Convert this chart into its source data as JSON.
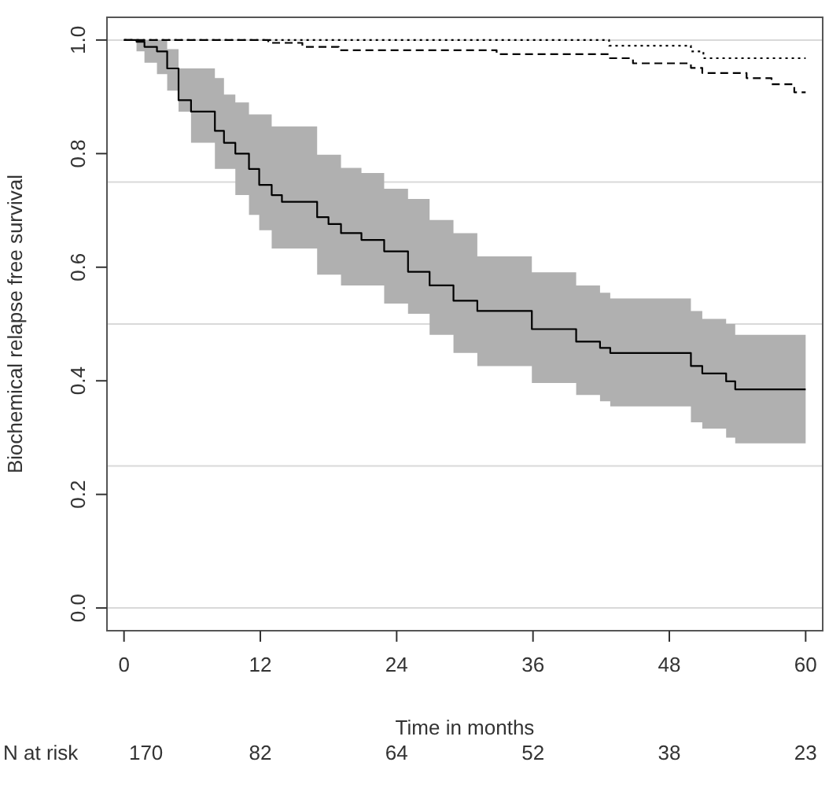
{
  "chart_data": {
    "type": "step",
    "xlabel": "Time in months",
    "ylabel": "Biochemical relapse free survival",
    "xlim": [
      -1.5,
      61.5
    ],
    "ylim": [
      -0.04,
      1.04
    ],
    "xticks": [
      0,
      12,
      24,
      36,
      48,
      60
    ],
    "yticks": [
      {
        "value": 0,
        "label": "0.0"
      },
      0.2,
      0.4,
      0.6,
      0.8,
      {
        "value": 1,
        "label": "1.0"
      }
    ],
    "ref_lines": [
      {
        "axis": "y",
        "value": 0,
        "color": "#d9d9d9"
      },
      {
        "axis": "y",
        "value": 0.25,
        "color": "#d9d9d9"
      },
      {
        "axis": "y",
        "value": 0.5,
        "color": "#d9d9d9"
      },
      {
        "axis": "y",
        "value": 0.75,
        "color": "#d9d9d9"
      },
      {
        "axis": "y",
        "value": 1,
        "color": "#d9d9d9"
      }
    ],
    "series": [
      {
        "color": "#000000",
        "line_style": "solid",
        "x": [
          0,
          1.1,
          1.8,
          2.9,
          3.8,
          4.8,
          5.9,
          8.0,
          8.8,
          9.8,
          11,
          11.9,
          13,
          13.9,
          17,
          18,
          19.1,
          20.9,
          22.9,
          25,
          26.9,
          29,
          31.1,
          35.9,
          39.8,
          41.9,
          42.8,
          49.9,
          50.9,
          53,
          53.8,
          60
        ],
        "values": [
          1,
          0.997,
          0.988,
          0.98,
          0.95,
          0.894,
          0.874,
          0.84,
          0.819,
          0.8,
          0.773,
          0.745,
          0.727,
          0.715,
          0.688,
          0.676,
          0.66,
          0.648,
          0.628,
          0.592,
          0.568,
          0.541,
          0.523,
          0.491,
          0.469,
          0.458,
          0.449,
          0.426,
          0.413,
          0.399,
          0.385,
          0.385
        ],
        "upper": [
          1,
          1,
          1,
          1,
          0.984,
          0.95,
          0.95,
          0.933,
          0.904,
          0.89,
          0.869,
          0.869,
          0.848,
          0.848,
          0.798,
          0.798,
          0.775,
          0.766,
          0.738,
          0.72,
          0.683,
          0.66,
          0.619,
          0.591,
          0.568,
          0.555,
          0.545,
          0.523,
          0.509,
          0.5,
          0.481,
          0.481
        ],
        "lower": [
          1,
          0.98,
          0.96,
          0.94,
          0.911,
          0.874,
          0.819,
          0.773,
          0.773,
          0.727,
          0.692,
          0.665,
          0.633,
          0.633,
          0.587,
          0.587,
          0.568,
          0.568,
          0.536,
          0.518,
          0.481,
          0.449,
          0.426,
          0.396,
          0.375,
          0.364,
          0.355,
          0.327,
          0.316,
          0.3,
          0.29,
          0.29
        ]
      },
      {
        "color": "#000000",
        "line_style": "dashed",
        "x": [
          0,
          12.7,
          15.7,
          18.9,
          32.8,
          42.7,
          44.8,
          49.9,
          50.9,
          54.8,
          57,
          59,
          60
        ],
        "values": [
          1,
          0.995,
          0.988,
          0.982,
          0.975,
          0.968,
          0.959,
          0.951,
          0.942,
          0.933,
          0.922,
          0.908,
          0.908
        ]
      },
      {
        "color": "#000000",
        "line_style": "dotted",
        "x": [
          0,
          42.7,
          49.9,
          51,
          60
        ],
        "values": [
          1,
          0.99,
          0.98,
          0.968,
          0.968
        ]
      }
    ],
    "annotations": [
      "N at risk",
      "170",
      "82",
      "64",
      "52",
      "38",
      "23"
    ]
  }
}
